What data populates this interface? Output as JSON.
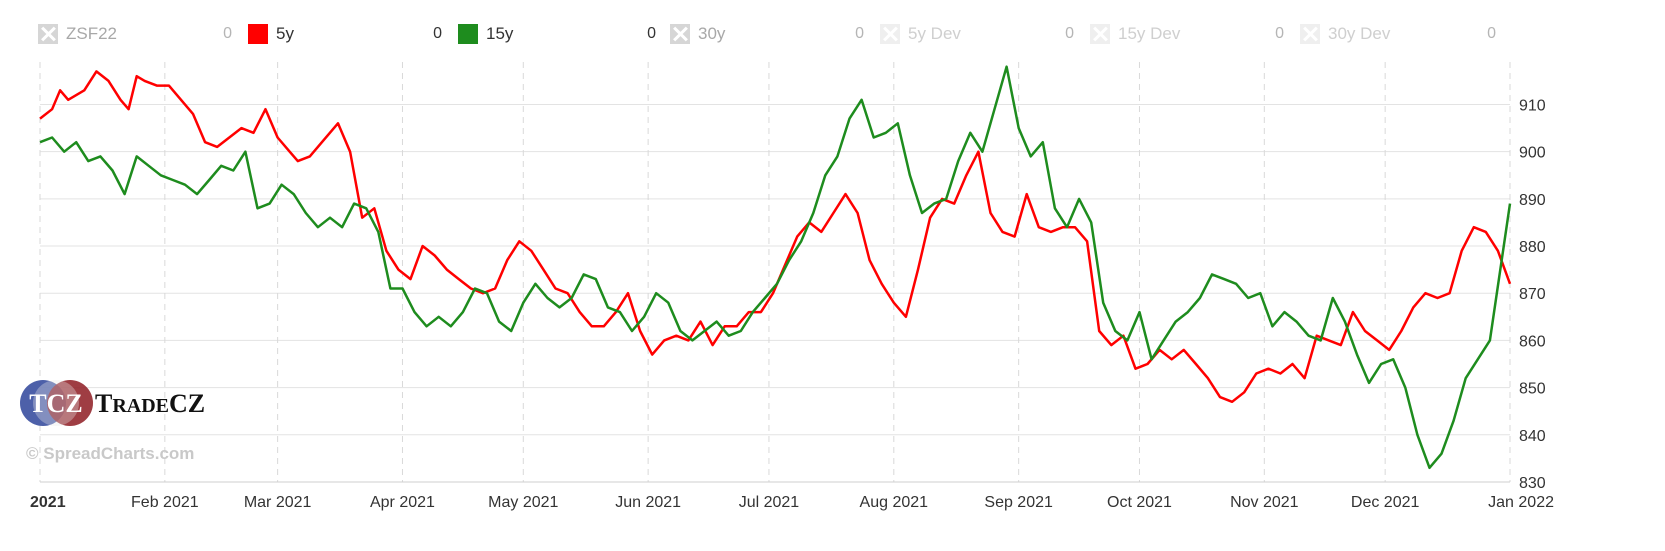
{
  "legend": [
    {
      "name": "ZSF22",
      "value": "0",
      "state": "off",
      "color": "#d6d6d6"
    },
    {
      "name": "5y",
      "value": "0",
      "state": "on",
      "color": "#ff0000"
    },
    {
      "name": "15y",
      "value": "0",
      "state": "on",
      "color": "#1e8c1e"
    },
    {
      "name": "30y",
      "value": "0",
      "state": "off",
      "color": "#d6d6d6"
    },
    {
      "name": "5y Dev",
      "value": "0",
      "state": "faint",
      "color": "#efefef"
    },
    {
      "name": "15y Dev",
      "value": "0",
      "state": "faint",
      "color": "#efefef"
    },
    {
      "name": "30y Dev",
      "value": "0",
      "state": "faint",
      "color": "#efefef"
    }
  ],
  "logo": {
    "mark": "TCZ",
    "name": "TradeCZ"
  },
  "watermark": "© SpreadCharts.com",
  "chart_data": {
    "type": "line",
    "x_start": "2021-01-01",
    "x_end": "2022-01-01",
    "x_tick_labels": [
      "2021",
      "Feb 2021",
      "Mar 2021",
      "Apr 2021",
      "May 2021",
      "Jun 2021",
      "Jul 2021",
      "Aug 2021",
      "Sep 2021",
      "Oct 2021",
      "Nov 2021",
      "Dec 2021",
      "Jan 2022"
    ],
    "x_tick_dates": [
      "2021-01-01",
      "2021-02-01",
      "2021-03-01",
      "2021-04-01",
      "2021-05-01",
      "2021-06-01",
      "2021-07-01",
      "2021-08-01",
      "2021-09-01",
      "2021-10-01",
      "2021-11-01",
      "2021-12-01",
      "2022-01-01"
    ],
    "y_ticks": [
      830,
      840,
      850,
      860,
      870,
      880,
      890,
      900,
      910
    ],
    "ylim": [
      830,
      919
    ],
    "y_axis_position": "right",
    "grid": true,
    "series": [
      {
        "name": "5y",
        "color": "#ff0000",
        "points": [
          [
            "2021-01-01",
            907
          ],
          [
            "2021-01-04",
            909
          ],
          [
            "2021-01-06",
            913
          ],
          [
            "2021-01-08",
            911
          ],
          [
            "2021-01-12",
            913
          ],
          [
            "2021-01-15",
            917
          ],
          [
            "2021-01-18",
            915
          ],
          [
            "2021-01-21",
            911
          ],
          [
            "2021-01-23",
            909
          ],
          [
            "2021-01-25",
            916
          ],
          [
            "2021-01-27",
            915
          ],
          [
            "2021-01-30",
            914
          ],
          [
            "2021-02-02",
            914
          ],
          [
            "2021-02-05",
            911
          ],
          [
            "2021-02-08",
            908
          ],
          [
            "2021-02-11",
            902
          ],
          [
            "2021-02-14",
            901
          ],
          [
            "2021-02-17",
            903
          ],
          [
            "2021-02-20",
            905
          ],
          [
            "2021-02-23",
            904
          ],
          [
            "2021-02-26",
            909
          ],
          [
            "2021-03-01",
            903
          ],
          [
            "2021-03-04",
            900
          ],
          [
            "2021-03-06",
            898
          ],
          [
            "2021-03-09",
            899
          ],
          [
            "2021-03-12",
            902
          ],
          [
            "2021-03-16",
            906
          ],
          [
            "2021-03-19",
            900
          ],
          [
            "2021-03-22",
            886
          ],
          [
            "2021-03-25",
            888
          ],
          [
            "2021-03-28",
            879
          ],
          [
            "2021-03-31",
            875
          ],
          [
            "2021-04-03",
            873
          ],
          [
            "2021-04-06",
            880
          ],
          [
            "2021-04-09",
            878
          ],
          [
            "2021-04-12",
            875
          ],
          [
            "2021-04-15",
            873
          ],
          [
            "2021-04-18",
            871
          ],
          [
            "2021-04-21",
            870
          ],
          [
            "2021-04-24",
            871
          ],
          [
            "2021-04-27",
            877
          ],
          [
            "2021-04-30",
            881
          ],
          [
            "2021-05-03",
            879
          ],
          [
            "2021-05-06",
            875
          ],
          [
            "2021-05-09",
            871
          ],
          [
            "2021-05-12",
            870
          ],
          [
            "2021-05-15",
            866
          ],
          [
            "2021-05-18",
            863
          ],
          [
            "2021-05-21",
            863
          ],
          [
            "2021-05-24",
            866
          ],
          [
            "2021-05-27",
            870
          ],
          [
            "2021-05-30",
            862
          ],
          [
            "2021-06-02",
            857
          ],
          [
            "2021-06-05",
            860
          ],
          [
            "2021-06-08",
            861
          ],
          [
            "2021-06-11",
            860
          ],
          [
            "2021-06-14",
            864
          ],
          [
            "2021-06-17",
            859
          ],
          [
            "2021-06-20",
            863
          ],
          [
            "2021-06-23",
            863
          ],
          [
            "2021-06-26",
            866
          ],
          [
            "2021-06-29",
            866
          ],
          [
            "2021-07-02",
            870
          ],
          [
            "2021-07-05",
            876
          ],
          [
            "2021-07-08",
            882
          ],
          [
            "2021-07-11",
            885
          ],
          [
            "2021-07-14",
            883
          ],
          [
            "2021-07-17",
            887
          ],
          [
            "2021-07-20",
            891
          ],
          [
            "2021-07-23",
            887
          ],
          [
            "2021-07-26",
            877
          ],
          [
            "2021-07-29",
            872
          ],
          [
            "2021-08-01",
            868
          ],
          [
            "2021-08-04",
            865
          ],
          [
            "2021-08-07",
            875
          ],
          [
            "2021-08-10",
            886
          ],
          [
            "2021-08-13",
            890
          ],
          [
            "2021-08-16",
            889
          ],
          [
            "2021-08-19",
            895
          ],
          [
            "2021-08-22",
            900
          ],
          [
            "2021-08-25",
            887
          ],
          [
            "2021-08-28",
            883
          ],
          [
            "2021-08-31",
            882
          ],
          [
            "2021-09-03",
            891
          ],
          [
            "2021-09-06",
            884
          ],
          [
            "2021-09-09",
            883
          ],
          [
            "2021-09-12",
            884
          ],
          [
            "2021-09-15",
            884
          ],
          [
            "2021-09-18",
            881
          ],
          [
            "2021-09-21",
            862
          ],
          [
            "2021-09-24",
            859
          ],
          [
            "2021-09-27",
            861
          ],
          [
            "2021-09-30",
            854
          ],
          [
            "2021-10-03",
            855
          ],
          [
            "2021-10-06",
            858
          ],
          [
            "2021-10-09",
            856
          ],
          [
            "2021-10-12",
            858
          ],
          [
            "2021-10-15",
            855
          ],
          [
            "2021-10-18",
            852
          ],
          [
            "2021-10-21",
            848
          ],
          [
            "2021-10-24",
            847
          ],
          [
            "2021-10-27",
            849
          ],
          [
            "2021-10-30",
            853
          ],
          [
            "2021-11-02",
            854
          ],
          [
            "2021-11-05",
            853
          ],
          [
            "2021-11-08",
            855
          ],
          [
            "2021-11-11",
            852
          ],
          [
            "2021-11-14",
            861
          ],
          [
            "2021-11-17",
            860
          ],
          [
            "2021-11-20",
            859
          ],
          [
            "2021-11-23",
            866
          ],
          [
            "2021-11-26",
            862
          ],
          [
            "2021-11-29",
            860
          ],
          [
            "2021-12-02",
            858
          ],
          [
            "2021-12-05",
            862
          ],
          [
            "2021-12-08",
            867
          ],
          [
            "2021-12-11",
            870
          ],
          [
            "2021-12-14",
            869
          ],
          [
            "2021-12-17",
            870
          ],
          [
            "2021-12-20",
            879
          ],
          [
            "2021-12-23",
            884
          ],
          [
            "2021-12-26",
            883
          ],
          [
            "2021-12-29",
            879
          ],
          [
            "2022-01-01",
            872
          ]
        ]
      },
      {
        "name": "15y",
        "color": "#1e8c1e",
        "points": [
          [
            "2021-01-01",
            902
          ],
          [
            "2021-01-04",
            903
          ],
          [
            "2021-01-07",
            900
          ],
          [
            "2021-01-10",
            902
          ],
          [
            "2021-01-13",
            898
          ],
          [
            "2021-01-16",
            899
          ],
          [
            "2021-01-19",
            896
          ],
          [
            "2021-01-22",
            891
          ],
          [
            "2021-01-25",
            899
          ],
          [
            "2021-01-28",
            897
          ],
          [
            "2021-01-31",
            895
          ],
          [
            "2021-02-03",
            894
          ],
          [
            "2021-02-06",
            893
          ],
          [
            "2021-02-09",
            891
          ],
          [
            "2021-02-12",
            894
          ],
          [
            "2021-02-15",
            897
          ],
          [
            "2021-02-18",
            896
          ],
          [
            "2021-02-21",
            900
          ],
          [
            "2021-02-24",
            888
          ],
          [
            "2021-02-27",
            889
          ],
          [
            "2021-03-02",
            893
          ],
          [
            "2021-03-05",
            891
          ],
          [
            "2021-03-08",
            887
          ],
          [
            "2021-03-11",
            884
          ],
          [
            "2021-03-14",
            886
          ],
          [
            "2021-03-17",
            884
          ],
          [
            "2021-03-20",
            889
          ],
          [
            "2021-03-23",
            888
          ],
          [
            "2021-03-26",
            883
          ],
          [
            "2021-03-29",
            871
          ],
          [
            "2021-04-01",
            871
          ],
          [
            "2021-04-04",
            866
          ],
          [
            "2021-04-07",
            863
          ],
          [
            "2021-04-10",
            865
          ],
          [
            "2021-04-13",
            863
          ],
          [
            "2021-04-16",
            866
          ],
          [
            "2021-04-19",
            871
          ],
          [
            "2021-04-22",
            870
          ],
          [
            "2021-04-25",
            864
          ],
          [
            "2021-04-28",
            862
          ],
          [
            "2021-05-01",
            868
          ],
          [
            "2021-05-04",
            872
          ],
          [
            "2021-05-07",
            869
          ],
          [
            "2021-05-10",
            867
          ],
          [
            "2021-05-13",
            869
          ],
          [
            "2021-05-16",
            874
          ],
          [
            "2021-05-19",
            873
          ],
          [
            "2021-05-22",
            867
          ],
          [
            "2021-05-25",
            866
          ],
          [
            "2021-05-28",
            862
          ],
          [
            "2021-05-31",
            865
          ],
          [
            "2021-06-03",
            870
          ],
          [
            "2021-06-06",
            868
          ],
          [
            "2021-06-09",
            862
          ],
          [
            "2021-06-12",
            860
          ],
          [
            "2021-06-15",
            862
          ],
          [
            "2021-06-18",
            864
          ],
          [
            "2021-06-21",
            861
          ],
          [
            "2021-06-24",
            862
          ],
          [
            "2021-06-27",
            866
          ],
          [
            "2021-06-30",
            869
          ],
          [
            "2021-07-03",
            872
          ],
          [
            "2021-07-06",
            877
          ],
          [
            "2021-07-09",
            881
          ],
          [
            "2021-07-12",
            887
          ],
          [
            "2021-07-15",
            895
          ],
          [
            "2021-07-18",
            899
          ],
          [
            "2021-07-21",
            907
          ],
          [
            "2021-07-24",
            911
          ],
          [
            "2021-07-27",
            903
          ],
          [
            "2021-07-30",
            904
          ],
          [
            "2021-08-02",
            906
          ],
          [
            "2021-08-05",
            895
          ],
          [
            "2021-08-08",
            887
          ],
          [
            "2021-08-11",
            889
          ],
          [
            "2021-08-14",
            890
          ],
          [
            "2021-08-17",
            898
          ],
          [
            "2021-08-20",
            904
          ],
          [
            "2021-08-23",
            900
          ],
          [
            "2021-08-26",
            909
          ],
          [
            "2021-08-29",
            918
          ],
          [
            "2021-09-01",
            905
          ],
          [
            "2021-09-04",
            899
          ],
          [
            "2021-09-07",
            902
          ],
          [
            "2021-09-10",
            888
          ],
          [
            "2021-09-13",
            884
          ],
          [
            "2021-09-16",
            890
          ],
          [
            "2021-09-19",
            885
          ],
          [
            "2021-09-22",
            868
          ],
          [
            "2021-09-25",
            862
          ],
          [
            "2021-09-28",
            860
          ],
          [
            "2021-10-01",
            866
          ],
          [
            "2021-10-04",
            856
          ],
          [
            "2021-10-07",
            860
          ],
          [
            "2021-10-10",
            864
          ],
          [
            "2021-10-13",
            866
          ],
          [
            "2021-10-16",
            869
          ],
          [
            "2021-10-19",
            874
          ],
          [
            "2021-10-22",
            873
          ],
          [
            "2021-10-25",
            872
          ],
          [
            "2021-10-28",
            869
          ],
          [
            "2021-10-31",
            870
          ],
          [
            "2021-11-03",
            863
          ],
          [
            "2021-11-06",
            866
          ],
          [
            "2021-11-09",
            864
          ],
          [
            "2021-11-12",
            861
          ],
          [
            "2021-11-15",
            860
          ],
          [
            "2021-11-18",
            869
          ],
          [
            "2021-11-21",
            864
          ],
          [
            "2021-11-24",
            857
          ],
          [
            "2021-11-27",
            851
          ],
          [
            "2021-11-30",
            855
          ],
          [
            "2021-12-03",
            856
          ],
          [
            "2021-12-06",
            850
          ],
          [
            "2021-12-09",
            840
          ],
          [
            "2021-12-12",
            833
          ],
          [
            "2021-12-15",
            836
          ],
          [
            "2021-12-18",
            843
          ],
          [
            "2021-12-21",
            852
          ],
          [
            "2021-12-24",
            856
          ],
          [
            "2021-12-27",
            860
          ],
          [
            "2022-01-01",
            889
          ]
        ]
      }
    ]
  }
}
